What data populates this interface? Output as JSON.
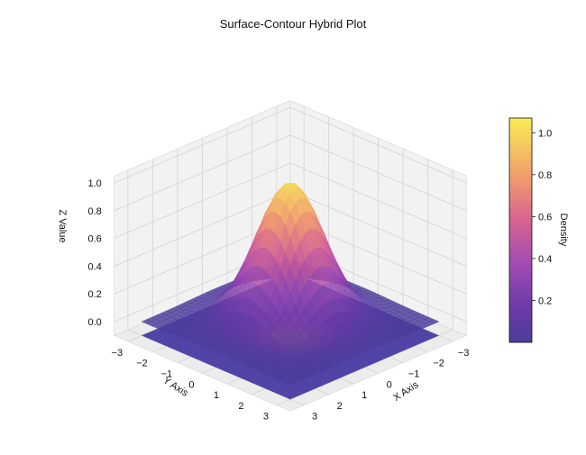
{
  "chart_data": {
    "type": "surface",
    "title": "Surface-Contour Hybrid Plot",
    "xlabel": "X Axis",
    "ylabel": "Y Axis",
    "zlabel": "Z Value",
    "xlim": [
      -3,
      3
    ],
    "ylim": [
      -3,
      3
    ],
    "zlim": [
      -0.1,
      1.05
    ],
    "x_ticks": [
      "−3",
      "−2",
      "−1",
      "0",
      "1",
      "2",
      "3"
    ],
    "y_ticks": [
      "−3",
      "−2",
      "−1",
      "0",
      "1",
      "2",
      "3"
    ],
    "z_ticks": [
      "0.0",
      "0.2",
      "0.4",
      "0.6",
      "0.8",
      "1.0"
    ],
    "function": "z = exp(-(x^2 + y^2)/2)",
    "peak": {
      "x": 0,
      "y": 0,
      "z": 1.0
    },
    "contour_offset_z": -0.1,
    "colormap": "plasma",
    "colorbar": {
      "label": "Density",
      "range": [
        0.0,
        1.07
      ],
      "ticks": [
        "0.2",
        "0.4",
        "0.6",
        "0.8",
        "1.0"
      ]
    },
    "grid": true
  }
}
